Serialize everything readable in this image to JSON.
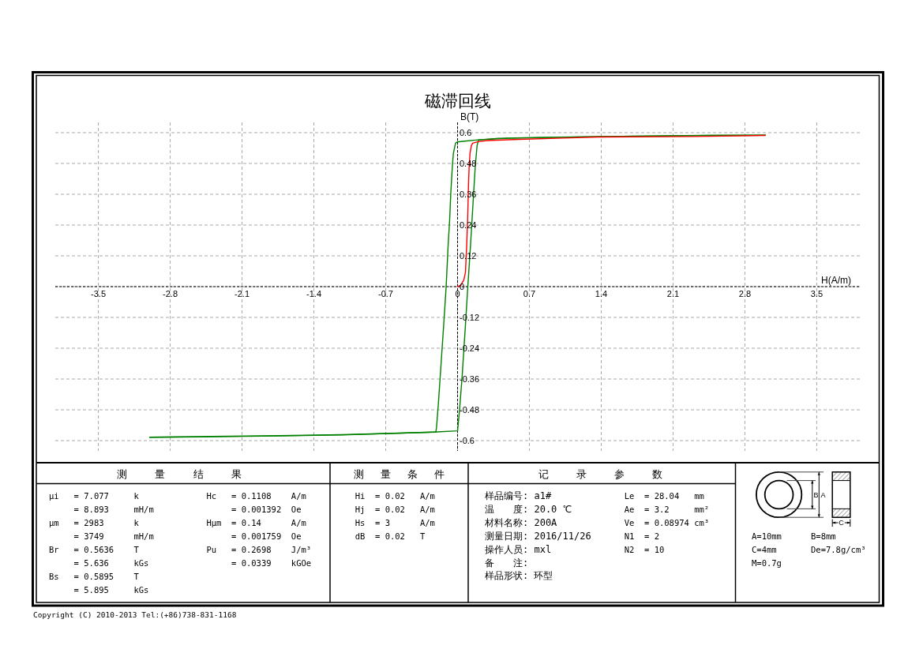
{
  "chart_data": [
    {
      "type": "line",
      "title": "磁滞回线",
      "xlabel": "H(A/m)",
      "ylabel": "B(T)",
      "xlim": [
        -3.92,
        3.92
      ],
      "ylim": [
        -0.64,
        0.64
      ],
      "xticks": [
        -3.5,
        -2.8,
        -2.1,
        -1.4,
        -0.7,
        0,
        0.7,
        1.4,
        2.1,
        2.8,
        3.5
      ],
      "yticks": [
        -0.6,
        -0.48,
        -0.36,
        -0.24,
        -0.12,
        0,
        0.12,
        0.24,
        0.36,
        0.48,
        0.6
      ],
      "grid": true,
      "series": [
        {
          "color": "#008000",
          "x": [
            3.0,
            2.4,
            1.7,
            1.0,
            0.5,
            0.2,
            0.05,
            0.0,
            -0.02,
            -0.041,
            -0.051,
            -0.066,
            -0.077,
            -0.092,
            -0.111,
            -0.135,
            -0.161,
            -0.187,
            -0.205,
            -0.212,
            -0.55,
            -1.13,
            -1.74,
            -2.4,
            -3.0
          ],
          "values": [
            0.59,
            0.589,
            0.586,
            0.582,
            0.578,
            0.572,
            0.566,
            0.564,
            0.559,
            0.518,
            0.466,
            0.364,
            0.26,
            0.159,
            0.0,
            -0.149,
            -0.303,
            -0.457,
            -0.549,
            -0.567,
            -0.571,
            -0.578,
            -0.582,
            -0.585,
            -0.587
          ]
        },
        {
          "color": "#008000",
          "x": [
            -3.0,
            -2.4,
            -1.74,
            -1.13,
            -0.55,
            -0.2,
            0.0,
            0.018,
            0.044,
            0.077,
            0.1,
            0.126,
            0.152,
            0.172,
            0.19,
            0.205,
            0.4,
            0.74,
            1.4,
            2.0,
            2.5,
            3.0
          ],
          "values": [
            -0.587,
            -0.584,
            -0.581,
            -0.577,
            -0.571,
            -0.566,
            -0.562,
            -0.487,
            -0.354,
            -0.149,
            0.0,
            0.159,
            0.333,
            0.466,
            0.549,
            0.572,
            0.578,
            0.581,
            0.585,
            0.587,
            0.589,
            0.59
          ]
        },
        {
          "color": "#ff0000",
          "x": [
            0.0,
            0.031,
            0.061,
            0.077,
            0.089,
            0.098,
            0.108,
            0.113,
            0.121,
            0.134,
            0.147,
            0.2,
            0.288,
            0.6,
            1.03,
            1.37,
            2.31,
            3.0
          ],
          "values": [
            0.0,
            0.005,
            0.026,
            0.056,
            0.159,
            0.26,
            0.415,
            0.466,
            0.518,
            0.549,
            0.559,
            0.565,
            0.569,
            0.574,
            0.579,
            0.583,
            0.585,
            0.589
          ]
        }
      ],
      "annotations": [
        "Copyright (C) 2010-2013 Tel:(+86)738-831-1168"
      ]
    },
    {
      "type": "other",
      "title": "测 量 结 果",
      "annotations": [
        "μi   = 7.077     k",
        "= 8.893     mH/m",
        "μm   = 2983      k",
        "= 3749      mH/m",
        "Br   = 0.5636    T",
        "= 5.636     kGs",
        "Bs   = 0.5895    T",
        "= 5.895     kGs"
      ]
    },
    {
      "type": "other",
      "annotations": [
        "Hc   = 0.1108    A/m",
        "= 0.001392  Oe",
        "Hμm  = 0.14      A/m",
        "= 0.001759  Oe",
        "Pu   = 0.2698    J/m³",
        "= 0.0339    kGOe"
      ]
    },
    {
      "type": "other",
      "title": "测 量 条 件",
      "annotations": [
        "Hi  = 0.02   A/m",
        "Hj  = 0.02   A/m",
        "Hs  = 3      A/m",
        "dB  = 0.02   T"
      ]
    },
    {
      "type": "other",
      "title": "记 录 参 数",
      "annotations": [
        "样品编号: a1#",
        "温　　度: 20.0 ℃",
        "材料名称: 200A",
        "测量日期: 2016/11/26",
        "操作人员: mxl",
        "备　　注:",
        "样品形状: 环型"
      ]
    },
    {
      "type": "other",
      "annotations": [
        "Le  = 28.04   mm",
        "Ae  = 3.2     mm²",
        "Ve  = 0.08974 cm³",
        "N1  = 2",
        "N2  = 10"
      ]
    },
    {
      "type": "other",
      "annotations": [
        "B",
        "A",
        "C"
      ]
    },
    {
      "type": "other",
      "annotations": [
        "A=10mm",
        "B=8mm",
        "C=4mm",
        "De=7.8g/cm³",
        "M=0.7g"
      ]
    }
  ]
}
